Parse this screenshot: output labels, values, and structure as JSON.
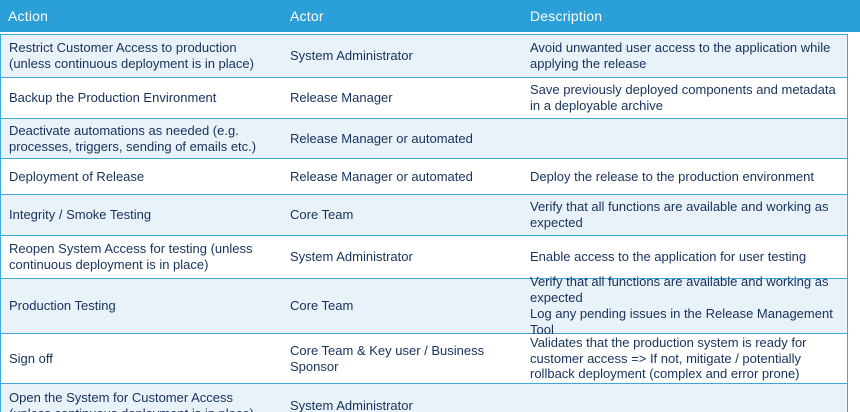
{
  "table": {
    "columns": {
      "action": "Action",
      "actor": "Actor",
      "description": "Description"
    },
    "rows": [
      {
        "action": "Restrict Customer Access to production (unless continuous deployment is in place)",
        "actor": "System Administrator",
        "description": "Avoid unwanted user access to the application while applying the release"
      },
      {
        "action": "Backup the Production Environment",
        "actor": "Release Manager",
        "description": "Save previously deployed components and metadata in a deployable archive"
      },
      {
        "action": "Deactivate automations as needed (e.g. processes, triggers, sending of emails etc.)",
        "actor": "Release Manager or automated",
        "description": ""
      },
      {
        "action": "Deployment of Release",
        "actor": "Release Manager or automated",
        "description": "Deploy the release to the production environment"
      },
      {
        "action": "Integrity / Smoke Testing",
        "actor": "Core Team",
        "description": "Verify that all functions are available and working as expected"
      },
      {
        "action": "Reopen System Access for testing (unless continuous deployment is in place)",
        "actor": "System Administrator",
        "description": "Enable access to the application for user testing"
      },
      {
        "action": "Production Testing",
        "actor": "Core Team",
        "description": "Verify that all functions are available and working as expected\nLog any pending issues in the Release Management Tool"
      },
      {
        "action": "Sign off",
        "actor": "Core Team & Key user / Business Sponsor",
        "description": "Validates that the production system is ready for customer access => If not, mitigate / potentially rollback deployment (complex and error prone)"
      },
      {
        "action": "Open the System for Customer Access  (unless continuous deployment is in place)",
        "actor": "System Administrator",
        "description": ""
      }
    ]
  },
  "colors": {
    "header_bg": "#2B9FD8",
    "header_text": "#FFFFFF",
    "row_alt_bg": "#E9F1F9",
    "row_bg": "#FFFFFF",
    "border": "#3BA7DB",
    "body_text": "#16325C"
  }
}
